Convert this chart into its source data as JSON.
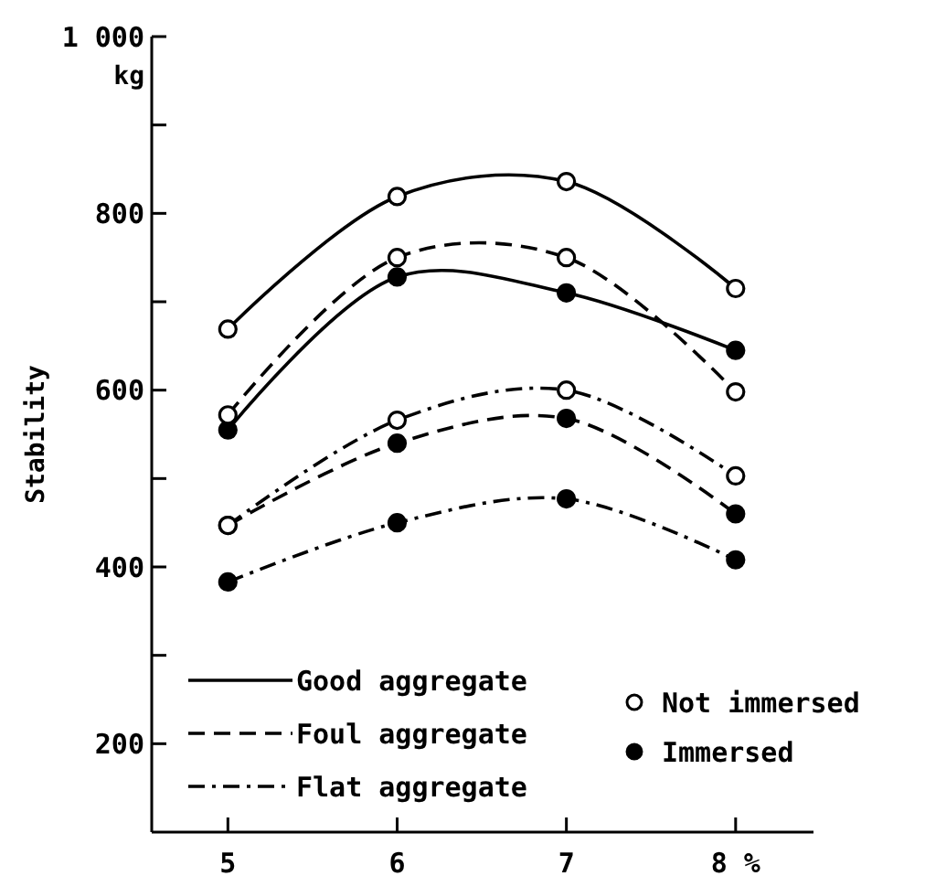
{
  "chart_data": {
    "type": "line",
    "ylabel": "Stability",
    "annotations": [
      "kg",
      "Not immersed",
      "Immersed"
    ],
    "x": [
      5,
      6,
      7,
      8
    ],
    "xlim": [
      4.55,
      8.46
    ],
    "xticks": [
      5,
      6,
      7,
      {
        "value": 8,
        "label": "8 %"
      }
    ],
    "ylim": [
      100,
      1000
    ],
    "yticks": [
      {
        "value": 200,
        "label": "200"
      },
      {
        "value": 300,
        "label": null
      },
      {
        "value": 400,
        "label": "400"
      },
      {
        "value": 500,
        "label": null
      },
      {
        "value": 600,
        "label": "600"
      },
      {
        "value": 700,
        "label": null
      },
      {
        "value": 800,
        "label": "800"
      },
      {
        "value": 900,
        "label": null
      },
      {
        "value": 1000,
        "label": "1 000"
      }
    ],
    "grid": false,
    "legend": "bottom left",
    "marker": "circle",
    "series": [
      {
        "name": "Good aggregate",
        "color": "#000000",
        "line_style": "solid",
        "values": [
          669,
          819,
          836,
          715
        ]
      },
      {
        "color": "#000000",
        "line_style": "solid",
        "values": [
          555,
          728,
          710,
          645
        ]
      },
      {
        "name": "Foul aggregate",
        "color": "#000000",
        "line_style": "dashed",
        "values": [
          572,
          750,
          750,
          598
        ]
      },
      {
        "color": "#000000",
        "line_style": "dashed",
        "values": [
          447,
          540,
          568,
          460
        ]
      },
      {
        "name": "Flat aggregate",
        "color": "#000000",
        "line_style": "dashdot",
        "values": [
          447,
          566,
          600,
          503
        ]
      },
      {
        "color": "#000000",
        "line_style": "dashdot",
        "values": [
          383,
          450,
          477,
          408
        ]
      }
    ]
  }
}
